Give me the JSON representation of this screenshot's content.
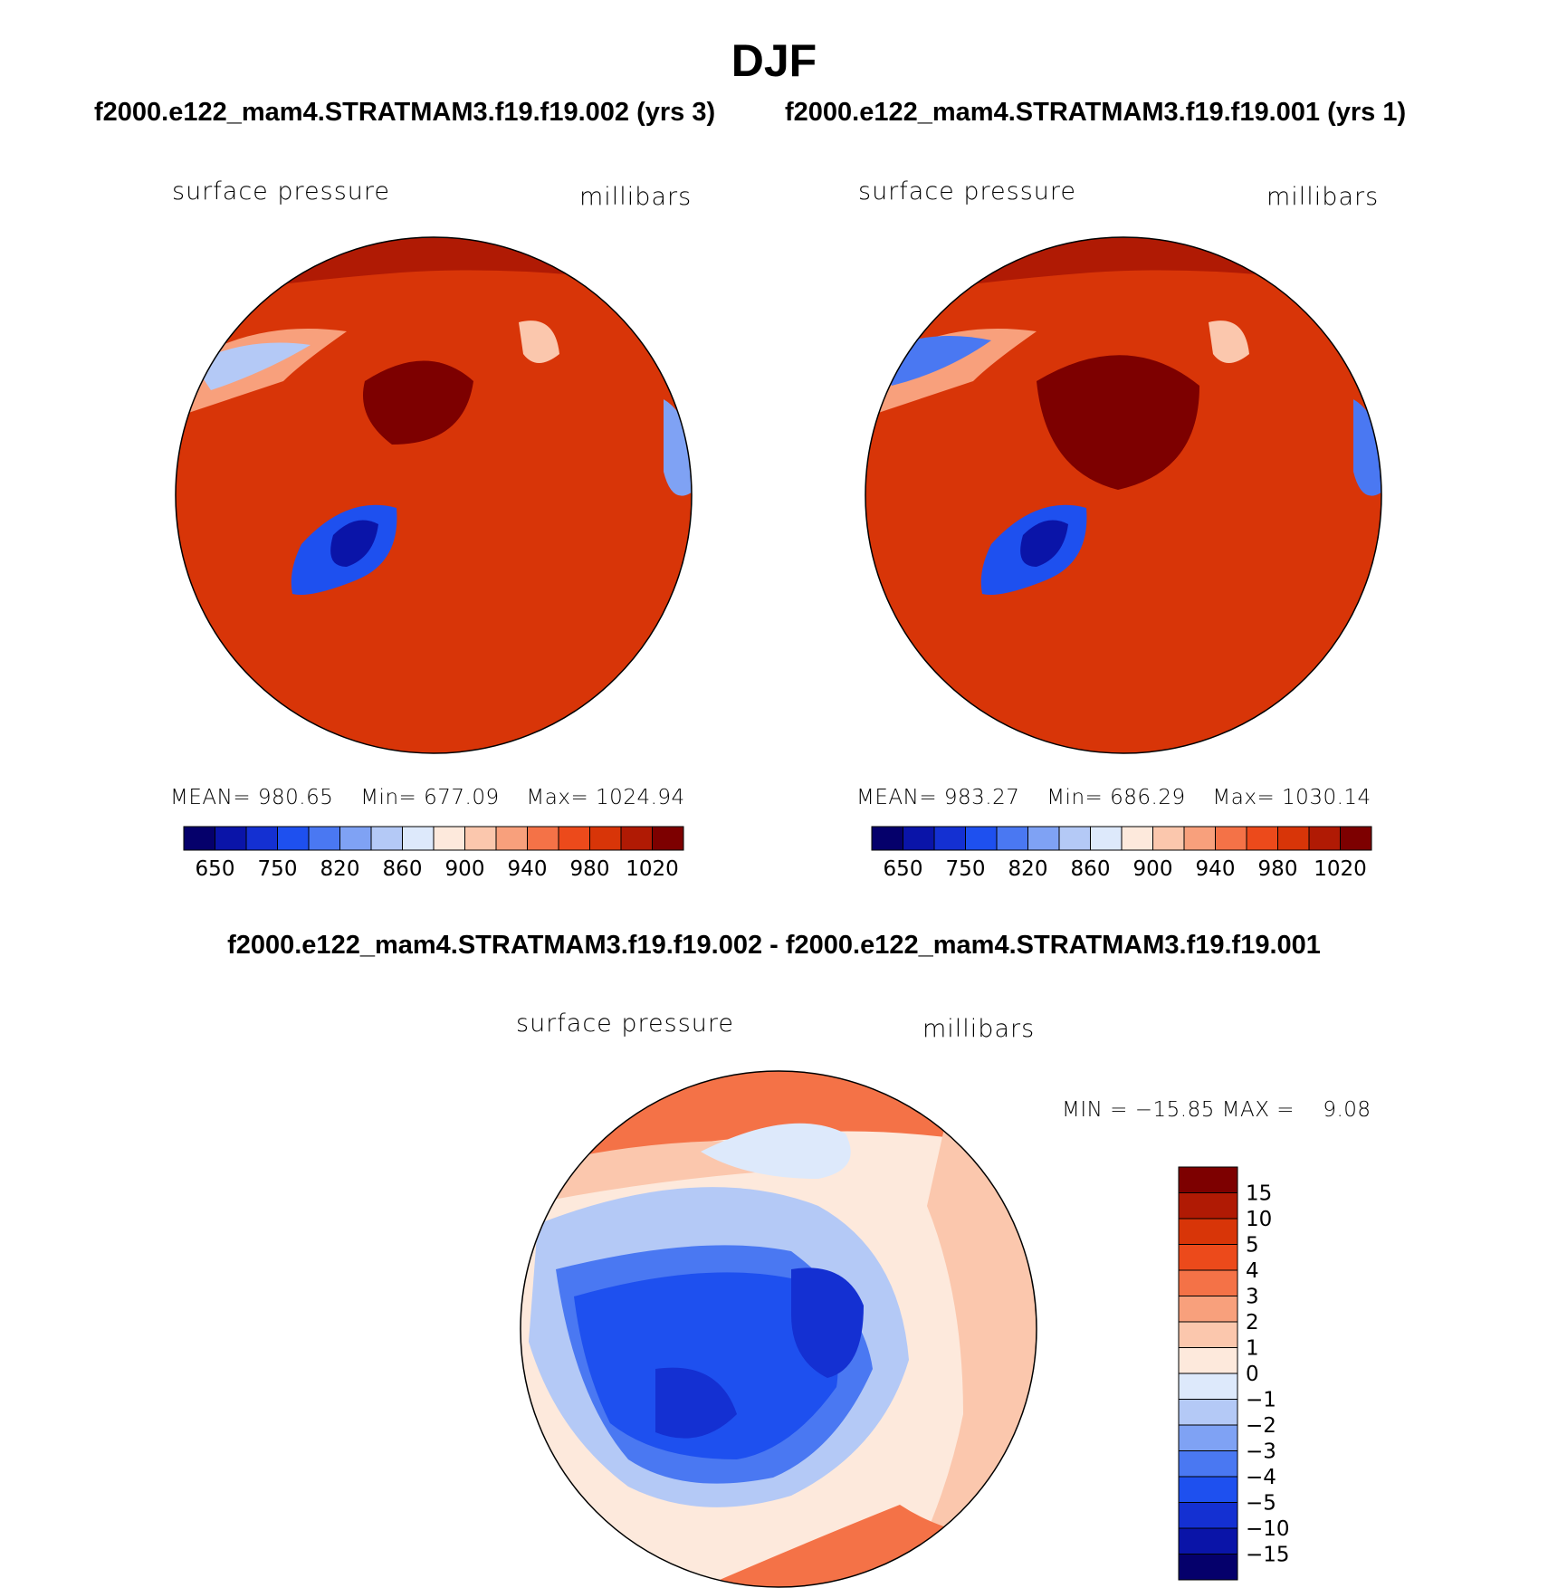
{
  "title": "DJF",
  "panel_left": {
    "case": "f2000.e122_mam4.STRATMAM3.f19.f19.002 (yrs 3)",
    "variable": "surface pressure",
    "units": "millibars",
    "mean_label": "MEAN=",
    "mean": "980.65",
    "min_label": "Min=",
    "min": "677.09",
    "max_label": "Max=",
    "max": "1024.94"
  },
  "panel_right": {
    "case": "f2000.e122_mam4.STRATMAM3.f19.f19.001 (yrs 1)",
    "variable": "surface pressure",
    "units": "millibars",
    "mean_label": "MEAN=",
    "mean": "983.27",
    "min_label": "Min=",
    "min": "686.29",
    "max_label": "Max=",
    "max": "1030.14"
  },
  "panel_diff": {
    "title": "f2000.e122_mam4.STRATMAM3.f19.f19.002 - f2000.e122_mam4.STRATMAM3.f19.f19.001",
    "variable": "surface pressure",
    "units": "millibars",
    "minmax_text": "MIN = −15.85 MAX =    9.08"
  },
  "colors": {
    "abs_scale": [
      "#05006b",
      "#0a14a8",
      "#1430d2",
      "#1e50ef",
      "#4a78f2",
      "#7fa2f4",
      "#b4c9f6",
      "#dde9fb",
      "#fde9dc",
      "#fbc7ad",
      "#f8a07c",
      "#f47247",
      "#ec4a1b",
      "#d83508",
      "#b01a04",
      "#7d0000"
    ],
    "diff_scale": [
      "#05006b",
      "#0a14a8",
      "#1430d2",
      "#1e50ef",
      "#4a78f2",
      "#7fa2f4",
      "#b4c9f6",
      "#dde9fb",
      "#fde9dc",
      "#fbc7ad",
      "#f8a07c",
      "#f47247",
      "#ec4a1b",
      "#d83508",
      "#b01a04",
      "#7d0000"
    ]
  },
  "chart_data": [
    {
      "type": "heatmap",
      "projection": "north polar stereographic",
      "title": "surface pressure",
      "units": "millibars",
      "colorbar_ticks": [
        "650",
        "750",
        "820",
        "860",
        "900",
        "940",
        "980",
        "1020"
      ],
      "mean": 980.65,
      "min": 677.09,
      "max": 1024.94
    },
    {
      "type": "heatmap",
      "projection": "north polar stereographic",
      "title": "surface pressure",
      "units": "millibars",
      "colorbar_ticks": [
        "650",
        "750",
        "820",
        "860",
        "900",
        "940",
        "980",
        "1020"
      ],
      "mean": 983.27,
      "min": 686.29,
      "max": 1030.14
    },
    {
      "type": "heatmap",
      "projection": "north polar stereographic",
      "title": "surface pressure",
      "units": "millibars",
      "colorbar_ticks": [
        "15",
        "10",
        "5",
        "4",
        "3",
        "2",
        "1",
        "0",
        "−1",
        "−2",
        "−3",
        "−4",
        "−5",
        "−10",
        "−15"
      ],
      "min": -15.85,
      "max": 9.08
    }
  ]
}
